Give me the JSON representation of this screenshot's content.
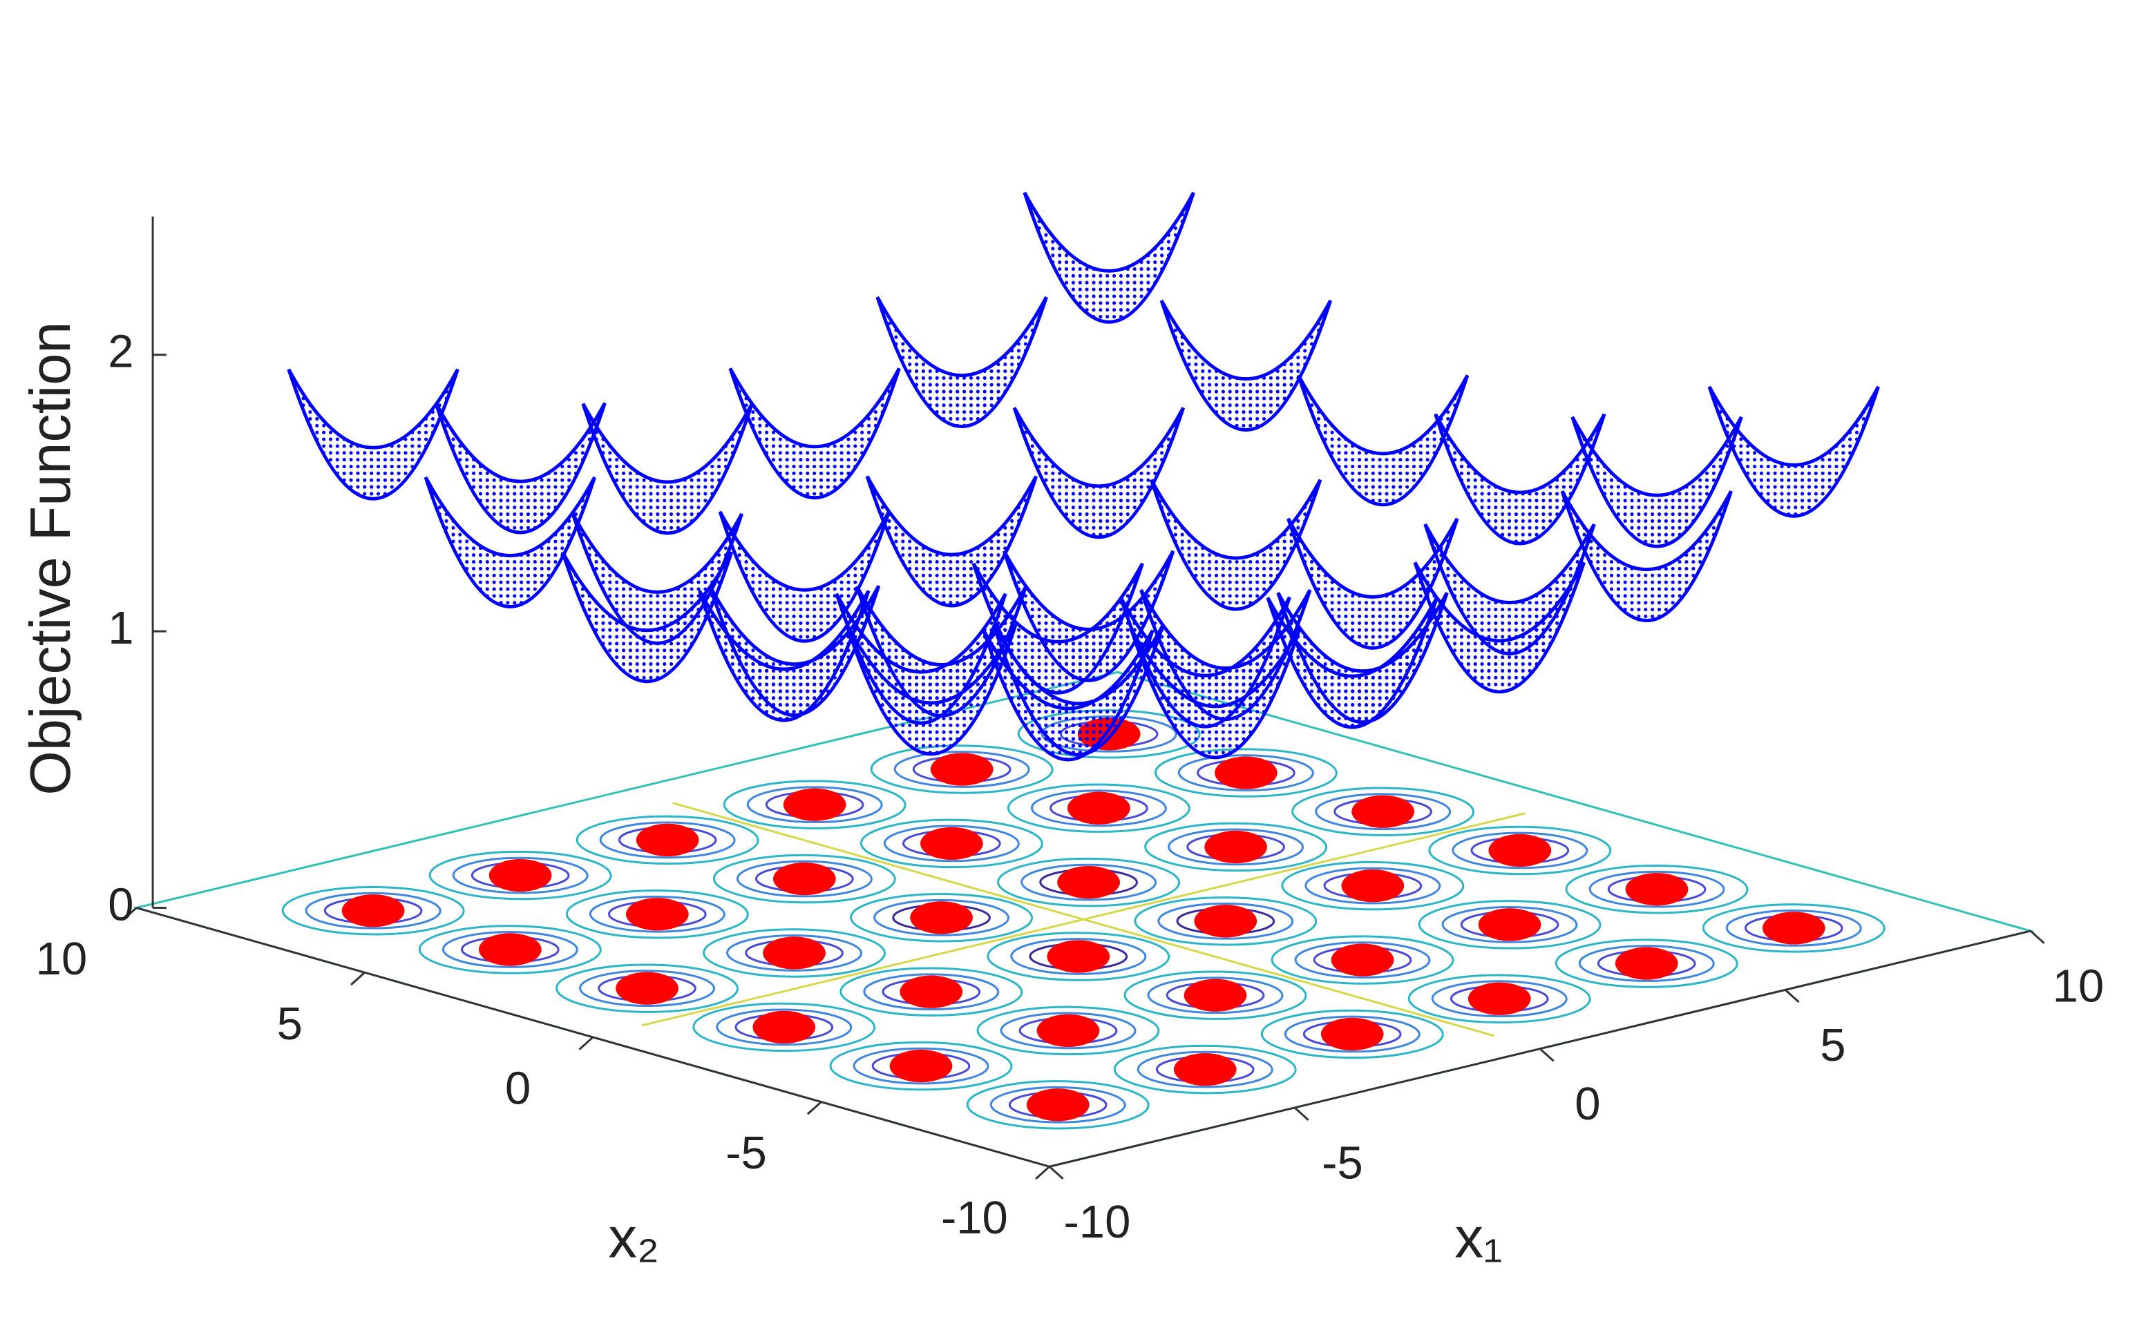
{
  "chart_data": {
    "type": "scatter3d",
    "zlabel": "Objective Function",
    "x1label": "x₁",
    "x2label": "x₂",
    "x1lim": [
      -10,
      10
    ],
    "x1ticks": [
      -10,
      -5,
      0,
      5,
      10
    ],
    "x2lim": [
      -10,
      10
    ],
    "x2ticks": [
      -10,
      -5,
      0,
      5,
      10
    ],
    "zlim": [
      0,
      2.5
    ],
    "zticks": [
      0,
      1,
      2
    ],
    "series": [
      {
        "color": "#0000ff",
        "x1": [
          -7.5,
          -4.5,
          -1.5,
          1.5,
          4.5,
          7.5,
          -7.5,
          -4.5,
          -1.5,
          1.5,
          4.5,
          7.5,
          -7.5,
          -4.5,
          -1.5,
          1.5,
          4.5,
          7.5,
          -7.5,
          -4.5,
          -1.5,
          1.5,
          4.5,
          7.5,
          -7.5,
          -4.5,
          -1.5,
          1.5,
          4.5,
          7.5,
          -7.5,
          -4.5,
          -1.5,
          1.5,
          4.5,
          7.5
        ],
        "x2": [
          7.5,
          7.5,
          7.5,
          7.5,
          7.5,
          7.5,
          4.5,
          4.5,
          4.5,
          4.5,
          4.5,
          4.5,
          1.5,
          1.5,
          1.5,
          1.5,
          1.5,
          1.5,
          -1.5,
          -1.5,
          -1.5,
          -1.5,
          -1.5,
          -1.5,
          -4.5,
          -4.5,
          -4.5,
          -4.5,
          -4.5,
          -4.5,
          -7.5,
          -7.5,
          -7.5,
          -7.5,
          -7.5,
          -7.5
        ],
        "z": [
          1.49,
          1.24,
          1.11,
          1.11,
          1.24,
          1.49,
          1.24,
          0.98,
          0.86,
          0.86,
          0.98,
          1.24,
          1.11,
          0.86,
          0.73,
          0.73,
          0.86,
          1.11,
          1.11,
          0.86,
          0.73,
          0.73,
          0.86,
          1.11,
          1.24,
          0.98,
          0.86,
          0.86,
          0.98,
          1.24,
          1.49,
          1.24,
          1.11,
          1.11,
          1.24,
          1.49
        ]
      },
      {
        "color": "#ff0000",
        "x1": [
          -7.5,
          -4.5,
          -1.5,
          1.5,
          4.5,
          7.5,
          -7.5,
          -4.5,
          -1.5,
          1.5,
          4.5,
          7.5,
          -7.5,
          -4.5,
          -1.5,
          1.5,
          4.5,
          7.5,
          -7.5,
          -4.5,
          -1.5,
          1.5,
          4.5,
          7.5,
          -7.5,
          -4.5,
          -1.5,
          1.5,
          4.5,
          7.5,
          -7.5,
          -4.5,
          -1.5,
          1.5,
          4.5,
          7.5
        ],
        "x2": [
          7.5,
          7.5,
          7.5,
          7.5,
          7.5,
          7.5,
          4.5,
          4.5,
          4.5,
          4.5,
          4.5,
          4.5,
          1.5,
          1.5,
          1.5,
          1.5,
          1.5,
          1.5,
          -1.5,
          -1.5,
          -1.5,
          -1.5,
          -1.5,
          -1.5,
          -4.5,
          -4.5,
          -4.5,
          -4.5,
          -4.5,
          -4.5,
          -7.5,
          -7.5,
          -7.5,
          -7.5,
          -7.5,
          -7.5
        ],
        "z": [
          0,
          0,
          0,
          0,
          0,
          0,
          0,
          0,
          0,
          0,
          0,
          0,
          0,
          0,
          0,
          0,
          0,
          0,
          0,
          0,
          0,
          0,
          0,
          0,
          0,
          0,
          0,
          0,
          0,
          0,
          0,
          0,
          0,
          0,
          0,
          0
        ]
      }
    ]
  }
}
